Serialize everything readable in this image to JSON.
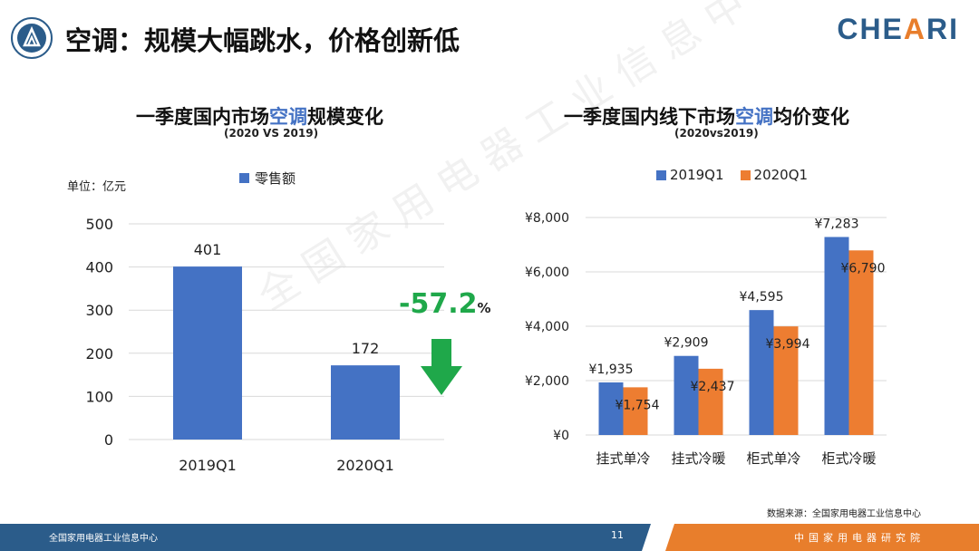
{
  "header": {
    "title": "空调：规模大幅跳水，价格创新低",
    "brand_logo_left": "CHE",
    "brand_logo_accent": "A",
    "brand_logo_right": "RI"
  },
  "left_chart": {
    "title_pre": "一季度国内市场",
    "title_hl": "空调",
    "title_post": "规模变化",
    "subtitle": "(2020 VS 2019)",
    "unit": "单位：亿元",
    "change": "-57.2",
    "change_unit": "%"
  },
  "right_chart": {
    "title_pre": "一季度国内线下市场",
    "title_hl": "空调",
    "title_post": "均价变化",
    "subtitle": "(2020vs2019)"
  },
  "colors": {
    "blue": "#4472c4",
    "orange": "#ed7d31",
    "green": "#1fa84a",
    "footer_blue": "#2b5c8a",
    "footer_orange": "#e87e2c"
  },
  "chart_data": [
    {
      "type": "bar",
      "categories": [
        "2019Q1",
        "2020Q1"
      ],
      "series": [
        {
          "name": "零售额",
          "values": [
            401,
            172
          ]
        }
      ],
      "data_labels": [
        "401",
        "172"
      ],
      "ylim": [
        0,
        500
      ],
      "yticks": [
        0,
        100,
        200,
        300,
        400,
        500
      ],
      "ytick_labels": [
        "0",
        "100",
        "200",
        "300",
        "400",
        "500"
      ],
      "grid": true,
      "legend": "top-center"
    },
    {
      "type": "bar",
      "categories": [
        "挂式单冷",
        "挂式冷暖",
        "柜式单冷",
        "柜式冷暖"
      ],
      "series": [
        {
          "name": "2019Q1",
          "values": [
            1935,
            2909,
            4595,
            7283
          ],
          "labels": [
            "¥1,935",
            "¥2,909",
            "¥4,595",
            "¥7,283"
          ]
        },
        {
          "name": "2020Q1",
          "values": [
            1754,
            2437,
            3994,
            6790
          ],
          "labels": [
            "¥1,754",
            "¥2,437",
            "¥3,994",
            "¥6,790"
          ]
        }
      ],
      "ylim": [
        0,
        8000
      ],
      "yticks": [
        0,
        2000,
        4000,
        6000,
        8000
      ],
      "ytick_labels": [
        "¥0",
        "¥2,000",
        "¥4,000",
        "¥6,000",
        "¥8,000"
      ],
      "grid": true,
      "legend": "top-center"
    }
  ],
  "watermark": "全国家用电器工业信息中心",
  "footer": {
    "source": "数据来源：全国家用电器工业信息中心",
    "left": "全国家用电器工业信息中心",
    "page": "11",
    "right": "中国家用电器研究院"
  }
}
